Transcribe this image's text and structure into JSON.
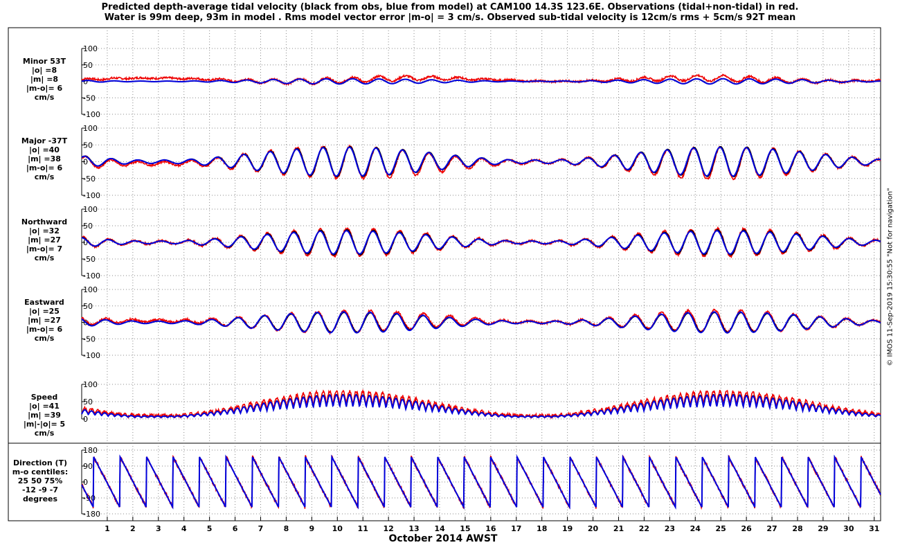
{
  "title_lines": [
    "Predicted depth-average tidal velocity (black from obs, blue from model) at CAM100 14.3S 123.6E. Observations (tidal+non-tidal) in red.",
    "Water is 99m deep, 93m in model . Rms model vector error |m-o| = 3 cm/s. Observed sub-tidal velocity is 12cm/s rms + 5cm/s 92T mean"
  ],
  "xlabel": "October 2014 AWST",
  "x_ticks": [
    "1",
    "2",
    "3",
    "4",
    "5",
    "6",
    "7",
    "8",
    "9",
    "10",
    "11",
    "12",
    "13",
    "14",
    "15",
    "16",
    "17",
    "18",
    "19",
    "20",
    "21",
    "22",
    "23",
    "24",
    "25",
    "26",
    "27",
    "28",
    "29",
    "30",
    "31"
  ],
  "footer": "© IMOS 11-Sep-2019 15:30:55  \"Not for navigation\"",
  "colors": {
    "obs": "#000000",
    "model": "#0000dd",
    "observed_total": "#ee0000"
  },
  "chart_data": [
    {
      "type": "line",
      "id": "minor",
      "ylabel": [
        "Minor 53T",
        "|o| =8",
        "|m| =8",
        "|m-o|= 6",
        "cm/s"
      ],
      "ylim": [
        -100,
        100
      ],
      "yticks": [
        100,
        50,
        0,
        -50,
        -100
      ],
      "x_range": [
        0,
        31.25
      ],
      "grid": true,
      "series": [
        {
          "role": "obs",
          "amplitude": 8,
          "mean": 0
        },
        {
          "role": "model",
          "amplitude": 8,
          "mean": 0
        },
        {
          "role": "observed_total",
          "amplitude": 9,
          "mean": 10
        }
      ]
    },
    {
      "type": "line",
      "id": "major",
      "ylabel": [
        "Major -37T",
        "|o| =40",
        "|m| =38",
        "|m-o|= 6",
        "cm/s"
      ],
      "ylim": [
        -100,
        100
      ],
      "yticks": [
        100,
        50,
        0,
        -50,
        -100
      ],
      "x_range": [
        0,
        31.25
      ],
      "grid": true,
      "series": [
        {
          "role": "obs",
          "amplitude": 45,
          "mean": 0
        },
        {
          "role": "model",
          "amplitude": 43,
          "mean": 0
        },
        {
          "role": "observed_total",
          "amplitude": 48,
          "mean": -5
        }
      ]
    },
    {
      "type": "line",
      "id": "northward",
      "ylabel": [
        "Northward",
        "|o| =32",
        "|m| =27",
        "|m-o|= 7",
        "cm/s"
      ],
      "ylim": [
        -100,
        100
      ],
      "yticks": [
        100,
        50,
        0,
        -50,
        -100
      ],
      "x_range": [
        0,
        31.25
      ],
      "grid": true,
      "series": [
        {
          "role": "obs",
          "amplitude": 38,
          "mean": 0
        },
        {
          "role": "model",
          "amplitude": 35,
          "mean": 0
        },
        {
          "role": "observed_total",
          "amplitude": 42,
          "mean": 0
        }
      ]
    },
    {
      "type": "line",
      "id": "eastward",
      "ylabel": [
        "Eastward",
        "|o| =25",
        "|m| =27",
        "|m-o|= 6",
        "cm/s"
      ],
      "ylim": [
        -100,
        100
      ],
      "yticks": [
        100,
        50,
        0,
        -50,
        -100
      ],
      "x_range": [
        0,
        31.25
      ],
      "grid": true,
      "series": [
        {
          "role": "obs",
          "amplitude": 30,
          "mean": 0
        },
        {
          "role": "model",
          "amplitude": 32,
          "mean": 0
        },
        {
          "role": "observed_total",
          "amplitude": 33,
          "mean": 5
        }
      ]
    },
    {
      "type": "line",
      "id": "speed",
      "ylabel": [
        "Speed",
        "|o| =41",
        "|m| =39",
        "|m|-|o|= 5",
        "cm/s"
      ],
      "ylim": [
        0,
        100
      ],
      "yticks": [
        100,
        50,
        0
      ],
      "x_range": [
        0,
        31.25
      ],
      "grid": true,
      "series": [
        {
          "role": "obs",
          "amplitude": 40,
          "mean": 35
        },
        {
          "role": "model",
          "amplitude": 38,
          "mean": 35
        },
        {
          "role": "observed_total",
          "amplitude": 43,
          "mean": 40
        }
      ]
    },
    {
      "type": "line",
      "id": "direction",
      "ylabel": [
        "Direction (T)",
        "m-o centiles:",
        "25  50  75%",
        "-12  -9  -7",
        "degrees"
      ],
      "ylim": [
        -180,
        180
      ],
      "yticks": [
        180,
        90,
        0,
        -90,
        -180
      ],
      "x_range": [
        0,
        31.25
      ],
      "grid": true,
      "series": [
        {
          "role": "obs",
          "note": "sawtooth wrapping between -180 and 180"
        },
        {
          "role": "model"
        },
        {
          "role": "observed_total"
        }
      ]
    }
  ]
}
